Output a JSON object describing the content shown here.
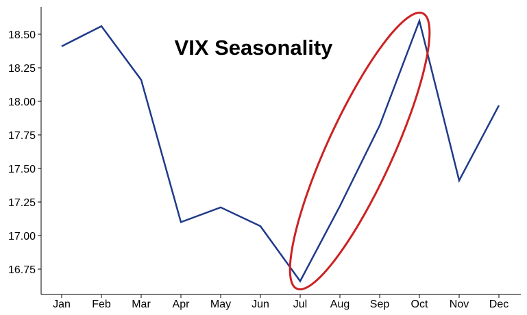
{
  "chart_data": {
    "type": "line",
    "title": "VIX Seasonality",
    "xlabel": "",
    "ylabel": "",
    "categories": [
      "Jan",
      "Feb",
      "Mar",
      "Apr",
      "May",
      "Jun",
      "Jul",
      "Aug",
      "Sep",
      "Oct",
      "Nov",
      "Dec"
    ],
    "series": [
      {
        "values": [
          18.41,
          18.56,
          18.16,
          17.1,
          17.21,
          17.07,
          16.66,
          17.22,
          17.82,
          18.6,
          17.41,
          17.97
        ],
        "color": "#1f3a8a"
      }
    ],
    "yticks": [
      16.75,
      17.0,
      17.25,
      17.5,
      17.75,
      18.0,
      18.25,
      18.5
    ],
    "ytick_labels": [
      "16.75",
      "17.00",
      "17.25",
      "17.50",
      "17.75",
      "18.00",
      "18.25",
      "18.50"
    ],
    "ylim": [
      16.6,
      18.7
    ],
    "grid": false,
    "annotation": {
      "shape": "ellipse",
      "color": "#cc2222",
      "from_category": "Jul",
      "to_category": "Oct"
    }
  }
}
